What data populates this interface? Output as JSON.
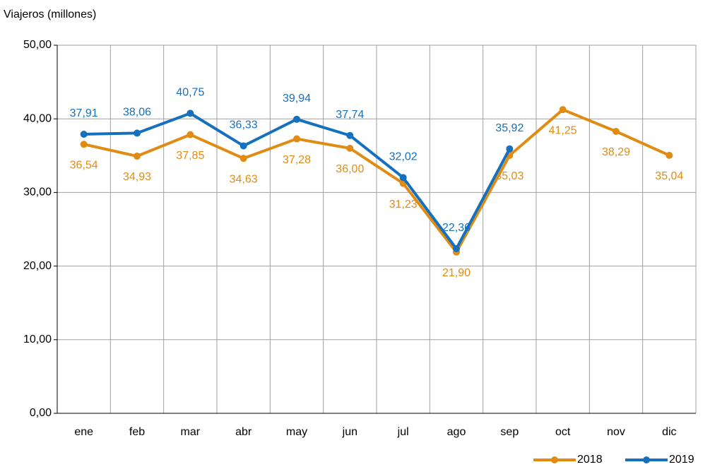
{
  "chart_data": {
    "type": "line",
    "y_label": "Viajeros  (millones)",
    "categories": [
      "ene",
      "feb",
      "mar",
      "abr",
      "may",
      "jun",
      "jul",
      "ago",
      "sep",
      "oct",
      "nov",
      "dic"
    ],
    "series": [
      {
        "name": "2018",
        "color": "#e08c14",
        "values": [
          36.54,
          34.93,
          37.85,
          34.63,
          37.28,
          36.0,
          31.23,
          21.9,
          35.03,
          41.25,
          38.29,
          35.04
        ],
        "value_labels": [
          "36,54",
          "34,93",
          "37,85",
          "34,63",
          "37,28",
          "36,00",
          "31,23",
          "21,90",
          "35,03",
          "41,25",
          "38,29",
          "35,04"
        ],
        "label_position": "below"
      },
      {
        "name": "2019",
        "color": "#1570be",
        "values": [
          37.91,
          38.06,
          40.75,
          36.33,
          39.94,
          37.74,
          32.02,
          22.36,
          35.92,
          null,
          null,
          null
        ],
        "value_labels": [
          "37,91",
          "38,06",
          "40,75",
          "36,33",
          "39,94",
          "37,74",
          "32,02",
          "22,36",
          "35,92",
          null,
          null,
          null
        ],
        "label_position": "above"
      }
    ],
    "ylim": [
      0,
      50
    ],
    "yticks": [
      {
        "value": 0,
        "label": "0,00"
      },
      {
        "value": 10,
        "label": "10,00"
      },
      {
        "value": 20,
        "label": "20,00"
      },
      {
        "value": 30,
        "label": "30,00"
      },
      {
        "value": 40,
        "label": "40,00"
      },
      {
        "value": 50,
        "label": "50,00"
      }
    ],
    "grid": true,
    "legend": "bottom-right"
  }
}
